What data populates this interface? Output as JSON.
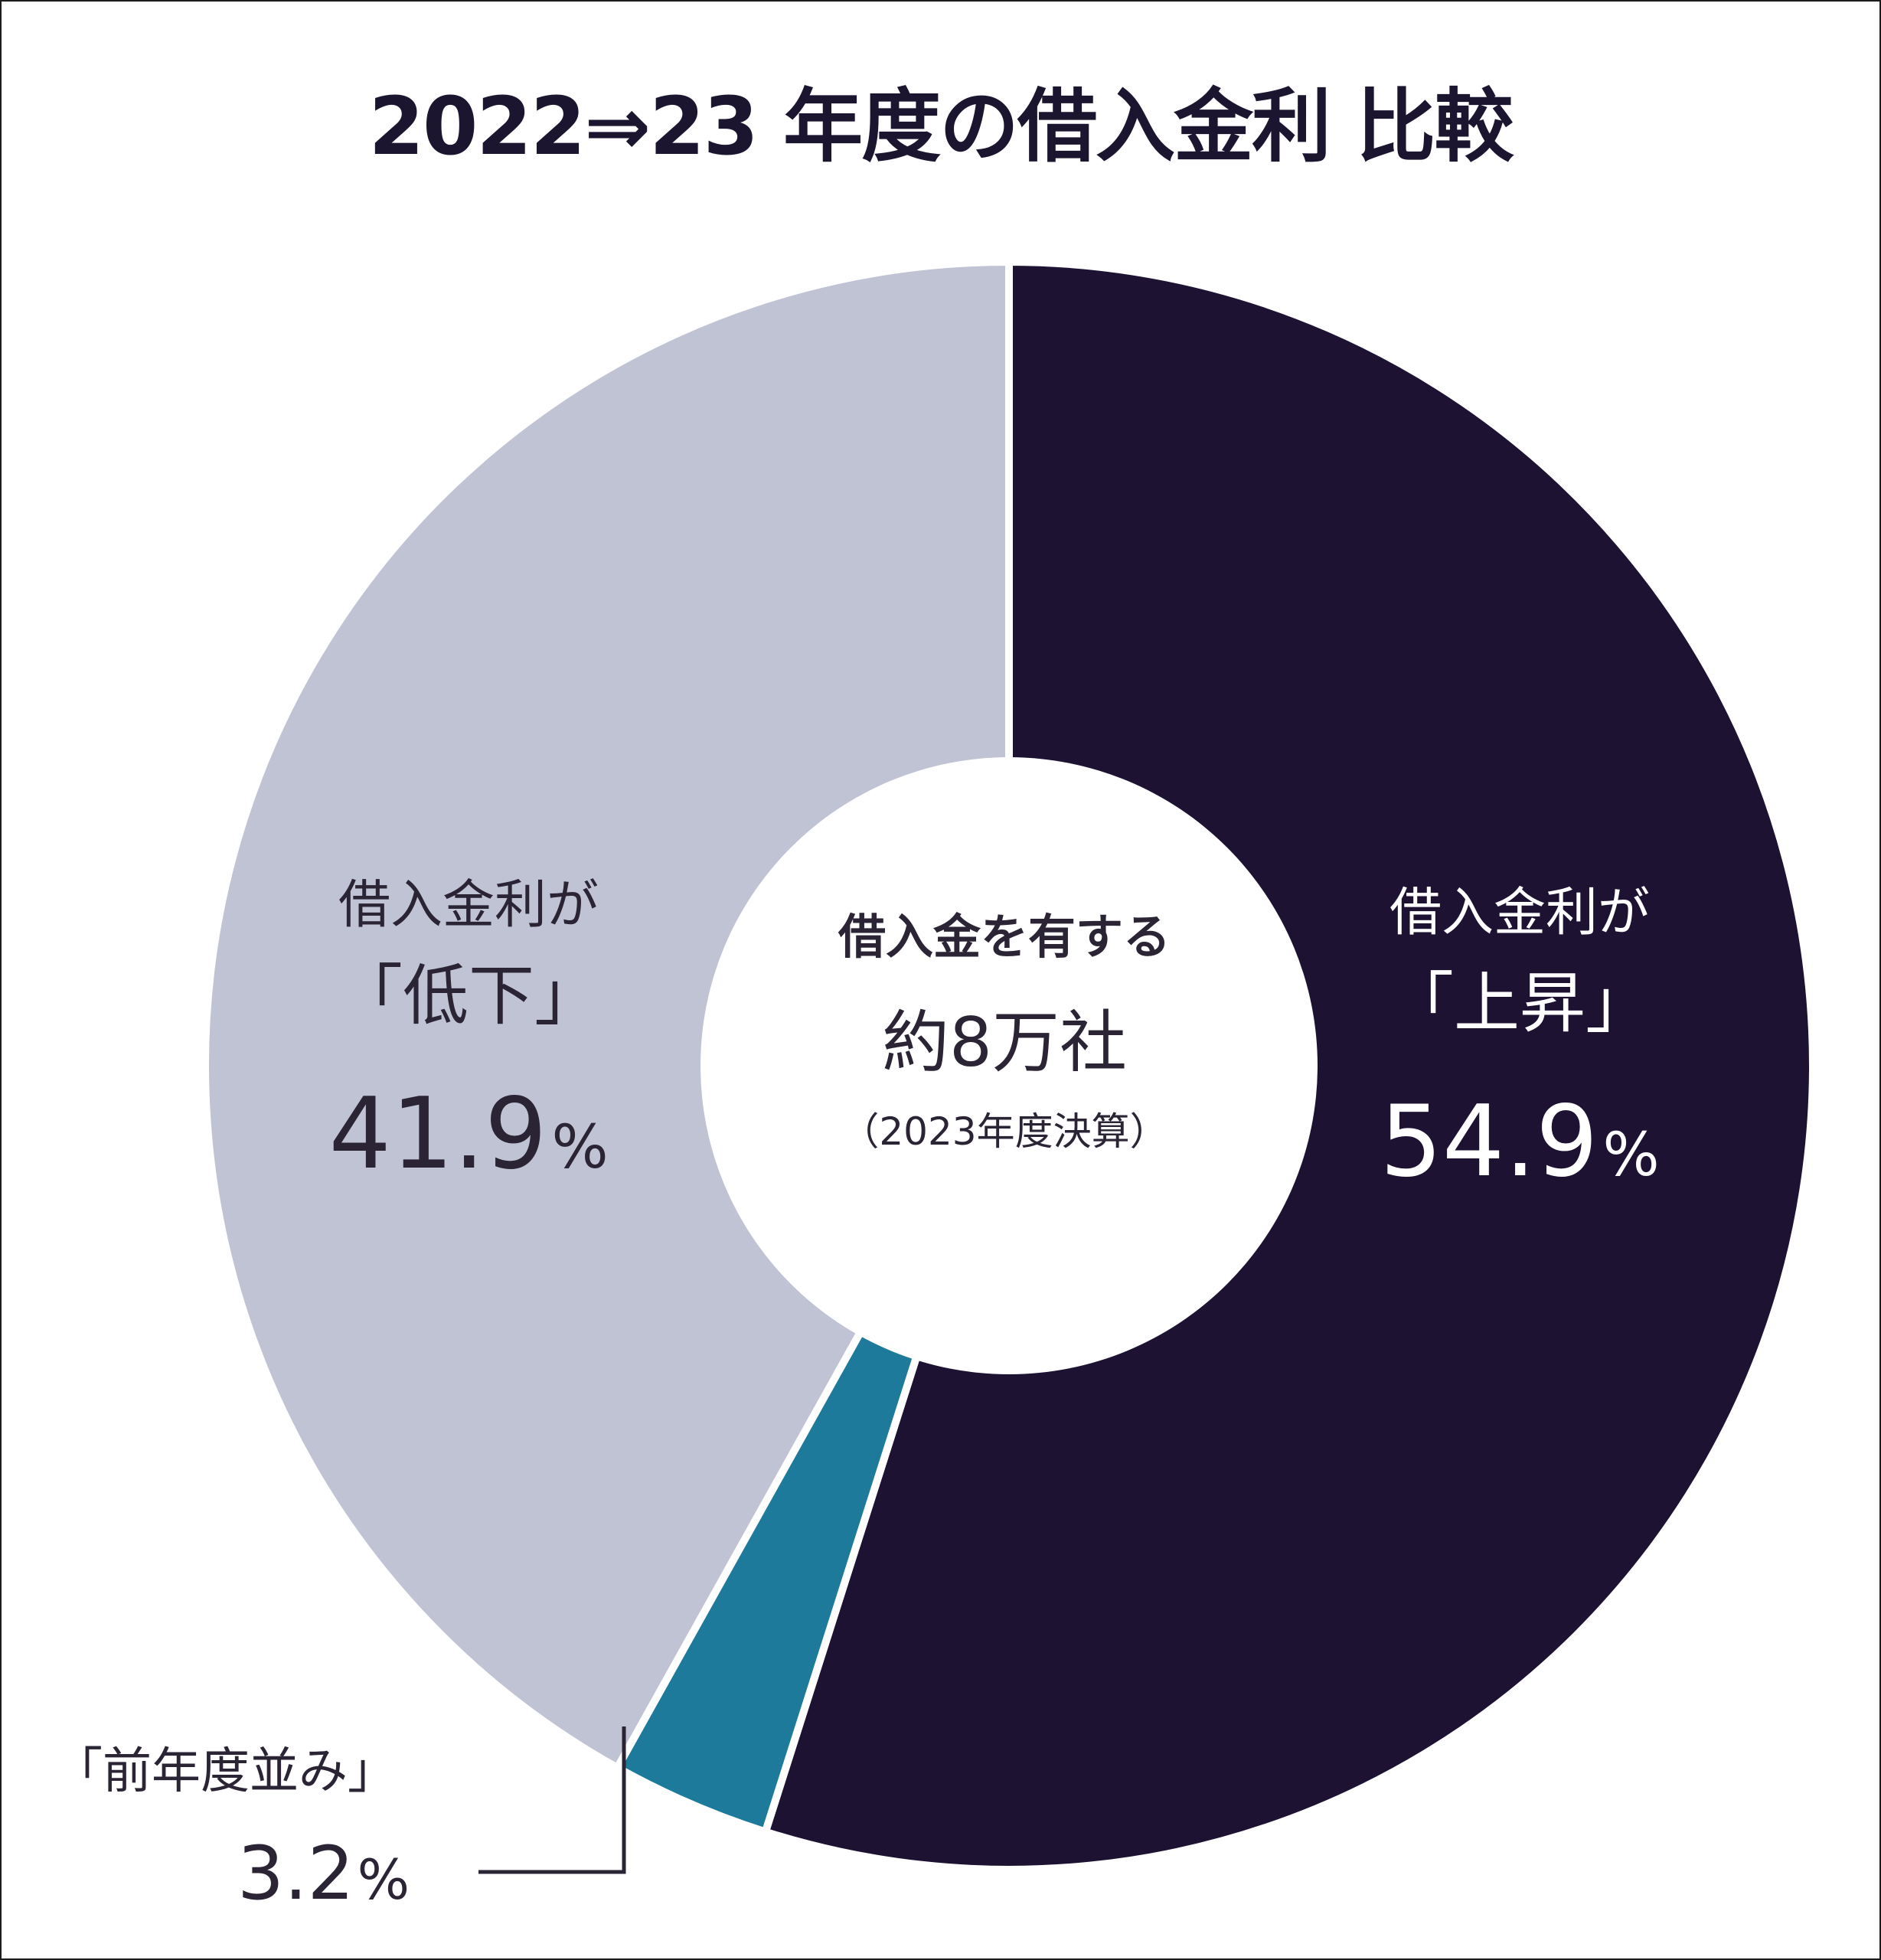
{
  "chart_data": {
    "type": "pie",
    "title": "2022⇒23 年度の借入金利 比較",
    "center_label": {
      "line1": "借入金を有する",
      "line2": "約8万社",
      "line3": "（2023年度決算）"
    },
    "slices": [
      {
        "label_line1": "借入金利が",
        "label_line2": "「上昇」",
        "value": 54.9,
        "value_text": "54.9",
        "unit": "%",
        "color": "#1e1232"
      },
      {
        "label_line1": "「前年度並み」",
        "label_line2": "",
        "value": 3.2,
        "value_text": "3.2",
        "unit": "%",
        "color": "#1d7a9a"
      },
      {
        "label_line1": "借入金利が",
        "label_line2": "「低下」",
        "value": 41.9,
        "value_text": "41.9",
        "unit": "%",
        "color": "#c0c3d4"
      }
    ]
  }
}
